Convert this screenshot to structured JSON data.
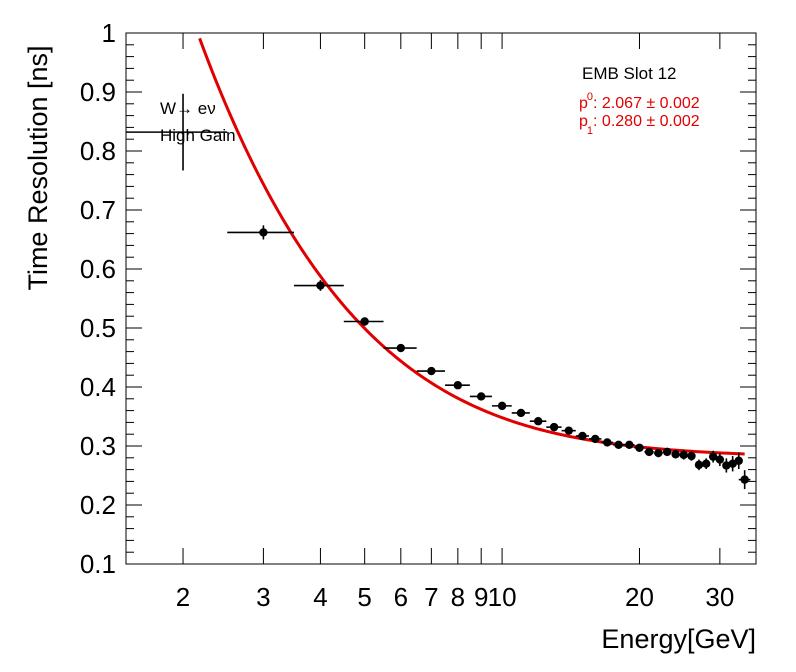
{
  "chart_data": {
    "type": "scatter",
    "title": "",
    "xlabel": "Energy[GeV]",
    "ylabel": "Time Resolution [ns]",
    "xscale": "log",
    "xlim": [
      1.5,
      36
    ],
    "ylim": [
      0.1,
      1.0
    ],
    "x_ticks": [
      2,
      3,
      4,
      5,
      6,
      7,
      8,
      9,
      10,
      20,
      30
    ],
    "x_tick_labels": [
      "2",
      "3",
      "4",
      "5",
      "6",
      "7",
      "8",
      "9",
      "10",
      "20",
      "30"
    ],
    "y_ticks": [
      0.1,
      0.2,
      0.3,
      0.4,
      0.5,
      0.6,
      0.7,
      0.8,
      0.9,
      1
    ],
    "y_tick_labels": [
      "0.1",
      "0.2",
      "0.3",
      "0.4",
      "0.5",
      "0.6",
      "0.7",
      "0.8",
      "0.9",
      "1"
    ],
    "annotations": [
      "W→ eν",
      "High Gain"
    ],
    "series_label": "EMB Slot 12",
    "fit": {
      "formula": "sqrt((p0/E)^2 + p1^2)",
      "p0": 2.067,
      "p0_err": 0.002,
      "p1": 0.28,
      "p1_err": 0.002,
      "x_range": [
        2.1,
        34
      ],
      "color": "#e00000",
      "labels": [
        "p",
        "0",
        ": 2.067 ± 0.002",
        "p",
        "1",
        ": 0.280 ± 0.002"
      ]
    },
    "series": [
      {
        "name": "data",
        "points": [
          {
            "x": 2.0,
            "y": 0.832,
            "xlo": 1.5,
            "xhi": 2.5,
            "yerr": 0.065
          },
          {
            "x": 3.0,
            "y": 0.662,
            "xlo": 2.5,
            "xhi": 3.5,
            "yerr": 0.012
          },
          {
            "x": 4.0,
            "y": 0.572,
            "xlo": 3.5,
            "xhi": 4.5,
            "yerr": 0.009
          },
          {
            "x": 5.0,
            "y": 0.511,
            "xlo": 4.5,
            "xhi": 5.5,
            "yerr": 0.007
          },
          {
            "x": 6.0,
            "y": 0.466,
            "xlo": 5.5,
            "xhi": 6.5,
            "yerr": 0.006
          },
          {
            "x": 7.0,
            "y": 0.427,
            "xlo": 6.5,
            "xhi": 7.5,
            "yerr": 0.006
          },
          {
            "x": 8.0,
            "y": 0.403,
            "xlo": 7.5,
            "xhi": 8.5,
            "yerr": 0.005
          },
          {
            "x": 9.0,
            "y": 0.384,
            "xlo": 8.5,
            "xhi": 9.5,
            "yerr": 0.005
          },
          {
            "x": 10.0,
            "y": 0.368,
            "xlo": 9.5,
            "xhi": 10.5,
            "yerr": 0.005
          },
          {
            "x": 11.0,
            "y": 0.356,
            "xlo": 10.5,
            "xhi": 11.5,
            "yerr": 0.005
          },
          {
            "x": 12.0,
            "y": 0.342,
            "xlo": 11.5,
            "xhi": 12.5,
            "yerr": 0.005
          },
          {
            "x": 13.0,
            "y": 0.332,
            "xlo": 12.5,
            "xhi": 13.5,
            "yerr": 0.005
          },
          {
            "x": 14.0,
            "y": 0.326,
            "xlo": 13.5,
            "xhi": 14.5,
            "yerr": 0.005
          },
          {
            "x": 15.0,
            "y": 0.317,
            "xlo": 14.5,
            "xhi": 15.5,
            "yerr": 0.005
          },
          {
            "x": 16.0,
            "y": 0.312,
            "xlo": 15.5,
            "xhi": 16.5,
            "yerr": 0.005
          },
          {
            "x": 17.0,
            "y": 0.306,
            "xlo": 16.5,
            "xhi": 17.5,
            "yerr": 0.005
          },
          {
            "x": 18.0,
            "y": 0.302,
            "xlo": 17.5,
            "xhi": 18.5,
            "yerr": 0.005
          },
          {
            "x": 19.0,
            "y": 0.302,
            "xlo": 18.5,
            "xhi": 19.5,
            "yerr": 0.006
          },
          {
            "x": 20.0,
            "y": 0.297,
            "xlo": 19.5,
            "xhi": 20.5,
            "yerr": 0.006
          },
          {
            "x": 21.0,
            "y": 0.29,
            "xlo": 20.5,
            "xhi": 21.5,
            "yerr": 0.006
          },
          {
            "x": 22.0,
            "y": 0.288,
            "xlo": 21.5,
            "xhi": 22.5,
            "yerr": 0.007
          },
          {
            "x": 23.0,
            "y": 0.29,
            "xlo": 22.5,
            "xhi": 23.5,
            "yerr": 0.007
          },
          {
            "x": 24.0,
            "y": 0.286,
            "xlo": 23.5,
            "xhi": 24.5,
            "yerr": 0.007
          },
          {
            "x": 25.0,
            "y": 0.285,
            "xlo": 24.5,
            "xhi": 25.5,
            "yerr": 0.008
          },
          {
            "x": 26.0,
            "y": 0.283,
            "xlo": 25.5,
            "xhi": 26.5,
            "yerr": 0.008
          },
          {
            "x": 27.0,
            "y": 0.268,
            "xlo": 26.5,
            "xhi": 27.5,
            "yerr": 0.009
          },
          {
            "x": 28.0,
            "y": 0.27,
            "xlo": 27.5,
            "xhi": 28.5,
            "yerr": 0.009
          },
          {
            "x": 29.0,
            "y": 0.282,
            "xlo": 28.5,
            "xhi": 29.5,
            "yerr": 0.01
          },
          {
            "x": 30.0,
            "y": 0.277,
            "xlo": 29.5,
            "xhi": 30.5,
            "yerr": 0.011
          },
          {
            "x": 31.0,
            "y": 0.267,
            "xlo": 30.5,
            "xhi": 31.5,
            "yerr": 0.012
          },
          {
            "x": 32.0,
            "y": 0.27,
            "xlo": 31.5,
            "xhi": 32.5,
            "yerr": 0.013
          },
          {
            "x": 33.0,
            "y": 0.275,
            "xlo": 32.5,
            "xhi": 33.5,
            "yerr": 0.014
          },
          {
            "x": 34.0,
            "y": 0.243,
            "xlo": 33.0,
            "xhi": 35.0,
            "yerr": 0.016
          }
        ]
      }
    ]
  }
}
